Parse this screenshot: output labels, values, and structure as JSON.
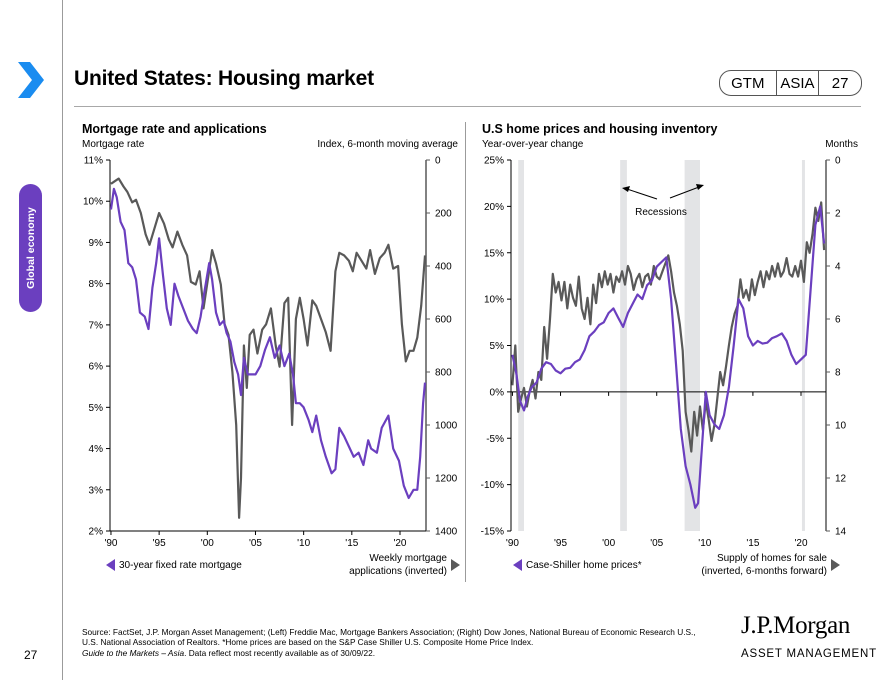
{
  "header": {
    "title": "United States: Housing market",
    "badge": [
      "GTM",
      "ASIA",
      "27"
    ],
    "section_tab": "Global economy",
    "page_number": "27"
  },
  "colors": {
    "purple": "#6b3fbf",
    "grey": "#595959",
    "recession": "#e3e4e6",
    "brand_blue": "#1a8cf0"
  },
  "footer": {
    "source_line1": "Source: FactSet, J.P. Morgan Asset Management; (Left) Freddie Mac, Mortgage Bankers Association; (Right) Dow Jones, National Bureau of Economic Research U.S.,",
    "source_line2": "U.S. National Association of Realtors.  *Home prices are based on the S&P Case Shiller U.S. Composite Home Price Index.",
    "source_line3_italic": "Guide to the Markets – Asia",
    "source_line3_rest": ". Data reflect most recently available as of 30/09/22.",
    "logo_main": "J.P.Morgan",
    "logo_sub": "ASSET MANAGEMENT"
  },
  "chart_data": [
    {
      "type": "line",
      "title": "Mortgage rate and applications",
      "ylabel": "Mortgage rate",
      "y2label": "Index, 6-month moving average",
      "xlabel": "",
      "x_ticks": [
        "'90",
        "'95",
        "'00",
        "'05",
        "'10",
        "'15",
        "'20"
      ],
      "x_tick_years": [
        1990,
        1995,
        2000,
        2005,
        2010,
        2015,
        2020
      ],
      "xlim": [
        1989.9,
        2022.7
      ],
      "ylim": [
        2,
        11
      ],
      "y_ticks": [
        "2%",
        "3%",
        "4%",
        "5%",
        "6%",
        "7%",
        "8%",
        "9%",
        "10%",
        "11%"
      ],
      "y_tick_values": [
        2,
        3,
        4,
        5,
        6,
        7,
        8,
        9,
        10,
        11
      ],
      "y2lim": [
        0,
        1400
      ],
      "y2_inverted": true,
      "y2_ticks": [
        "0",
        "200",
        "400",
        "600",
        "800",
        "1000",
        "1200",
        "1400"
      ],
      "y2_tick_values": [
        0,
        200,
        400,
        600,
        800,
        1000,
        1200,
        1400
      ],
      "legend": {
        "left": "30-year fixed rate mortgage",
        "right_line1": "Weekly mortgage",
        "right_line2": "applications (inverted)"
      },
      "series": [
        {
          "name": "30-year fixed rate mortgage",
          "axis": "left",
          "x": [
            1990.0,
            1990.3,
            1990.6,
            1991.0,
            1991.4,
            1991.8,
            1992.2,
            1992.6,
            1993.0,
            1993.5,
            1993.9,
            1994.3,
            1994.7,
            1995.0,
            1995.4,
            1995.8,
            1996.2,
            1996.6,
            1997.0,
            1997.5,
            1998.0,
            1998.5,
            1998.9,
            1999.3,
            1999.7,
            2000.2,
            2000.5,
            2000.9,
            2001.3,
            2001.7,
            2002.0,
            2002.4,
            2002.8,
            2003.2,
            2003.5,
            2003.8,
            2004.2,
            2004.6,
            2005.0,
            2005.5,
            2006.0,
            2006.5,
            2007.0,
            2007.5,
            2008.0,
            2008.5,
            2008.9,
            2009.2,
            2009.6,
            2010.0,
            2010.5,
            2010.9,
            2011.3,
            2011.8,
            2012.3,
            2012.9,
            2013.3,
            2013.7,
            2014.2,
            2014.8,
            2015.2,
            2015.7,
            2016.2,
            2016.7,
            2017.0,
            2017.6,
            2018.1,
            2018.8,
            2019.3,
            2019.9,
            2020.4,
            2020.9,
            2021.4,
            2021.8,
            2022.1,
            2022.4,
            2022.6
          ],
          "values": [
            9.8,
            10.3,
            10.1,
            9.5,
            9.3,
            8.5,
            8.4,
            8.1,
            7.3,
            7.2,
            6.9,
            7.9,
            8.5,
            9.1,
            8.2,
            7.4,
            7.0,
            8.0,
            7.7,
            7.4,
            7.1,
            6.9,
            6.8,
            7.2,
            7.8,
            8.5,
            8.1,
            7.3,
            7.0,
            7.1,
            6.8,
            6.6,
            6.1,
            5.8,
            5.3,
            6.2,
            5.8,
            5.8,
            5.8,
            6.0,
            6.4,
            6.7,
            6.2,
            6.5,
            6.0,
            6.3,
            5.8,
            5.1,
            5.1,
            5.0,
            4.7,
            4.4,
            4.8,
            4.2,
            3.8,
            3.4,
            3.5,
            4.5,
            4.3,
            4.0,
            3.8,
            3.9,
            3.6,
            4.2,
            4.0,
            3.9,
            4.5,
            4.8,
            4.0,
            3.7,
            3.1,
            2.8,
            3.0,
            3.0,
            3.8,
            5.1,
            5.6
          ]
        },
        {
          "name": "Weekly mortgage applications (inverted)",
          "axis": "right",
          "x": [
            1990.0,
            1990.4,
            1990.8,
            1991.3,
            1991.7,
            1992.2,
            1992.6,
            1993.1,
            1993.6,
            1994.0,
            1994.5,
            1995.0,
            1995.5,
            1996.0,
            1996.4,
            1996.9,
            1997.4,
            1997.9,
            1998.3,
            1998.8,
            1999.2,
            1999.6,
            2000.1,
            2000.5,
            2000.9,
            2001.4,
            2001.8,
            2002.2,
            2002.6,
            2003.0,
            2003.3,
            2003.5,
            2003.8,
            2004.1,
            2004.4,
            2004.8,
            2005.2,
            2005.7,
            2006.1,
            2006.6,
            2007.1,
            2007.5,
            2008.0,
            2008.4,
            2008.8,
            2009.2,
            2009.6,
            2010.0,
            2010.4,
            2010.9,
            2011.3,
            2011.8,
            2012.3,
            2012.8,
            2013.3,
            2013.7,
            2014.2,
            2014.7,
            2015.1,
            2015.5,
            2016.0,
            2016.5,
            2016.9,
            2017.4,
            2017.9,
            2018.4,
            2018.8,
            2019.3,
            2019.8,
            2020.2,
            2020.6,
            2021.0,
            2021.4,
            2021.8,
            2022.2,
            2022.6
          ],
          "values": [
            90,
            80,
            70,
            100,
            120,
            160,
            150,
            200,
            280,
            320,
            260,
            200,
            240,
            300,
            330,
            270,
            320,
            360,
            460,
            470,
            420,
            560,
            440,
            340,
            390,
            470,
            620,
            660,
            800,
            1000,
            1350,
            1200,
            700,
            860,
            660,
            640,
            730,
            640,
            620,
            560,
            700,
            780,
            540,
            520,
            1000,
            600,
            520,
            600,
            700,
            530,
            550,
            600,
            650,
            720,
            420,
            350,
            360,
            380,
            420,
            350,
            380,
            410,
            340,
            430,
            370,
            350,
            320,
            410,
            400,
            620,
            760,
            720,
            720,
            670,
            550,
            360
          ]
        }
      ]
    },
    {
      "type": "line",
      "title": "U.S home prices and housing inventory",
      "ylabel": "Year-over-year change",
      "y2label": "Months",
      "xlabel": "",
      "x_ticks": [
        "'90",
        "'95",
        "'00",
        "'05",
        "'10",
        "'15",
        "'20"
      ],
      "x_tick_years": [
        1990,
        1995,
        2000,
        2005,
        2010,
        2015,
        2020
      ],
      "xlim": [
        1989.85,
        2022.6
      ],
      "ylim": [
        -15,
        25
      ],
      "y_ticks": [
        "-15%",
        "-10%",
        "-5%",
        "0%",
        "5%",
        "10%",
        "15%",
        "20%",
        "25%"
      ],
      "y_tick_values": [
        -15,
        -10,
        -5,
        0,
        5,
        10,
        15,
        20,
        25
      ],
      "y2lim": [
        0,
        14
      ],
      "y2_inverted": true,
      "y2_ticks": [
        "0",
        "2",
        "4",
        "6",
        "8",
        "10",
        "12",
        "14"
      ],
      "y2_tick_values": [
        0,
        2,
        4,
        6,
        8,
        10,
        12,
        14
      ],
      "recessions": [
        [
          1990.6,
          1991.2
        ],
        [
          2001.2,
          2001.9
        ],
        [
          2007.9,
          2009.5
        ],
        [
          2020.1,
          2020.4
        ]
      ],
      "annotation": "Recessions",
      "legend": {
        "left": "Case-Shiller home prices*",
        "right_line1": "Supply of homes for sale",
        "right_line2": "(inverted, 6-months forward)"
      },
      "series": [
        {
          "name": "Case-Shiller home prices*",
          "axis": "left",
          "x": [
            1990.0,
            1990.4,
            1990.8,
            1991.2,
            1991.6,
            1992.0,
            1992.5,
            1993.0,
            1993.5,
            1994.0,
            1994.5,
            1995.0,
            1995.5,
            1996.0,
            1996.5,
            1997.0,
            1997.5,
            1998.0,
            1998.5,
            1999.0,
            1999.5,
            2000.0,
            2000.5,
            2001.0,
            2001.5,
            2002.0,
            2002.5,
            2003.0,
            2003.5,
            2004.0,
            2004.5,
            2005.0,
            2005.5,
            2006.0,
            2006.5,
            2007.0,
            2007.5,
            2008.0,
            2008.5,
            2009.0,
            2009.3,
            2009.7,
            2010.1,
            2010.5,
            2011.0,
            2011.5,
            2012.0,
            2012.5,
            2013.0,
            2013.5,
            2014.0,
            2014.5,
            2015.0,
            2015.5,
            2016.0,
            2016.5,
            2017.0,
            2017.5,
            2018.0,
            2018.5,
            2019.0,
            2019.5,
            2020.0,
            2020.5,
            2021.0,
            2021.5,
            2022.0,
            2022.4
          ],
          "values": [
            4.0,
            2.0,
            -1.0,
            -2.0,
            -0.5,
            0.5,
            1.0,
            2.5,
            3.2,
            3.0,
            2.3,
            2.0,
            2.5,
            2.6,
            3.2,
            3.5,
            4.5,
            6.0,
            6.5,
            7.2,
            7.5,
            8.5,
            9.0,
            8.0,
            7.0,
            8.5,
            9.5,
            10.5,
            10.0,
            11.5,
            12.0,
            13.5,
            14.0,
            14.5,
            10.0,
            3.0,
            -4.0,
            -8.0,
            -10.0,
            -12.5,
            -12.0,
            -6.0,
            0.0,
            -2.5,
            -3.5,
            -4.0,
            -2.5,
            0.5,
            5.0,
            10.0,
            9.0,
            6.0,
            5.0,
            5.5,
            5.2,
            5.3,
            5.8,
            6.0,
            6.3,
            5.5,
            4.0,
            3.0,
            3.5,
            4.0,
            11.0,
            18.0,
            20.0,
            16.0
          ]
        },
        {
          "name": "Supply of homes for sale (inverted, 6-months forward)",
          "axis": "right",
          "x": [
            1990.0,
            1990.3,
            1990.6,
            1990.9,
            1991.2,
            1991.5,
            1991.8,
            1992.1,
            1992.4,
            1992.7,
            1993.0,
            1993.3,
            1993.6,
            1993.9,
            1994.2,
            1994.5,
            1994.8,
            1995.1,
            1995.4,
            1995.7,
            1996.0,
            1996.3,
            1996.6,
            1996.9,
            1997.2,
            1997.5,
            1997.8,
            1998.1,
            1998.4,
            1998.7,
            1999.0,
            1999.3,
            1999.6,
            1999.9,
            2000.2,
            2000.5,
            2000.8,
            2001.1,
            2001.4,
            2001.7,
            2002.0,
            2002.3,
            2002.6,
            2002.9,
            2003.2,
            2003.5,
            2003.8,
            2004.1,
            2004.4,
            2004.7,
            2005.0,
            2005.3,
            2005.6,
            2005.9,
            2006.2,
            2006.5,
            2006.8,
            2007.1,
            2007.4,
            2007.7,
            2008.0,
            2008.3,
            2008.6,
            2008.9,
            2009.2,
            2009.5,
            2009.8,
            2010.1,
            2010.4,
            2010.7,
            2011.0,
            2011.3,
            2011.6,
            2011.9,
            2012.2,
            2012.5,
            2012.8,
            2013.1,
            2013.4,
            2013.7,
            2014.0,
            2014.3,
            2014.6,
            2014.9,
            2015.2,
            2015.5,
            2015.8,
            2016.1,
            2016.4,
            2016.7,
            2017.0,
            2017.3,
            2017.6,
            2017.9,
            2018.2,
            2018.5,
            2018.8,
            2019.1,
            2019.4,
            2019.7,
            2020.0,
            2020.3,
            2020.6,
            2020.9,
            2021.2,
            2021.5,
            2021.8,
            2022.1,
            2022.4
          ],
          "values": [
            8.5,
            7.0,
            9.5,
            9.0,
            8.6,
            9.3,
            8.7,
            8.3,
            9.0,
            8.0,
            8.3,
            6.3,
            7.5,
            6.0,
            4.3,
            5.0,
            4.6,
            5.3,
            4.6,
            5.6,
            4.7,
            5.2,
            5.5,
            4.4,
            5.6,
            6.0,
            5.2,
            6.2,
            4.7,
            5.4,
            4.3,
            4.8,
            4.2,
            4.7,
            4.3,
            5.0,
            4.4,
            4.6,
            4.2,
            4.7,
            4.0,
            4.3,
            4.9,
            4.5,
            4.3,
            4.8,
            4.4,
            4.3,
            4.7,
            4.0,
            4.4,
            4.5,
            4.2,
            3.9,
            3.6,
            4.2,
            5.0,
            5.5,
            6.2,
            7.2,
            9.5,
            10.2,
            11.0,
            9.5,
            10.4,
            9.3,
            10.2,
            9.1,
            9.8,
            10.6,
            10.0,
            9.0,
            8.0,
            8.5,
            7.8,
            7.0,
            6.3,
            5.8,
            5.5,
            4.5,
            5.2,
            4.9,
            5.3,
            4.5,
            5.1,
            4.6,
            4.2,
            4.8,
            4.2,
            4.5,
            4.0,
            4.4,
            3.9,
            4.4,
            4.2,
            3.7,
            4.3,
            4.4,
            4.0,
            4.4,
            3.8,
            4.6,
            3.1,
            3.5,
            2.8,
            1.8,
            2.3,
            1.6,
            3.4
          ]
        }
      ]
    }
  ]
}
